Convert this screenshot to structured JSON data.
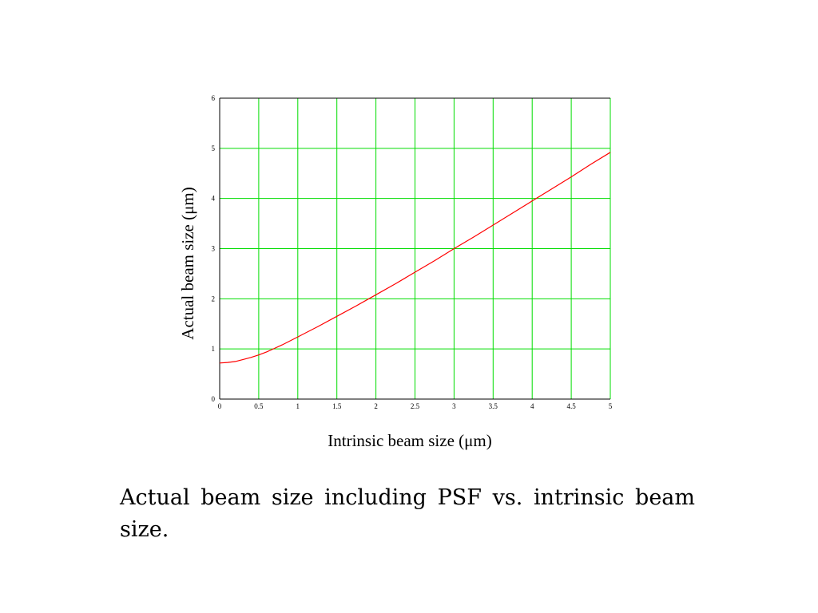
{
  "chart_data": {
    "type": "line",
    "title": "",
    "xlabel": "Intrinsic beam size (μm)",
    "ylabel": "Actual beam size (μm)",
    "xlim": [
      0,
      5
    ],
    "ylim": [
      0,
      6
    ],
    "x_ticks": [
      "0",
      "0.5",
      "1",
      "1.5",
      "2",
      "2.5",
      "3",
      "3.5",
      "4",
      "4.5",
      "5"
    ],
    "y_ticks": [
      "0",
      "1",
      "2",
      "3",
      "4",
      "5",
      "6"
    ],
    "grid": true,
    "series": [
      {
        "color": "#ff0000",
        "x": [
          0,
          0.1,
          0.2,
          0.3,
          0.4,
          0.5,
          0.6,
          0.7,
          0.8,
          0.9,
          1.0,
          1.25,
          1.5,
          1.75,
          2.0,
          2.25,
          2.5,
          2.75,
          3.0,
          3.25,
          3.5,
          3.75,
          4.0,
          4.25,
          4.5,
          4.75,
          5.0
        ],
        "y": [
          0.72,
          0.73,
          0.75,
          0.79,
          0.83,
          0.88,
          0.94,
          1.01,
          1.08,
          1.16,
          1.24,
          1.44,
          1.65,
          1.86,
          2.08,
          2.3,
          2.53,
          2.76,
          3.0,
          3.23,
          3.47,
          3.71,
          3.95,
          4.19,
          4.43,
          4.68,
          4.92
        ]
      }
    ]
  },
  "colors": {
    "grid": "#00dd00",
    "axis": "#000000",
    "line": "#ff0000"
  },
  "caption": "Actual beam size including PSF vs. intrinsic beam size."
}
